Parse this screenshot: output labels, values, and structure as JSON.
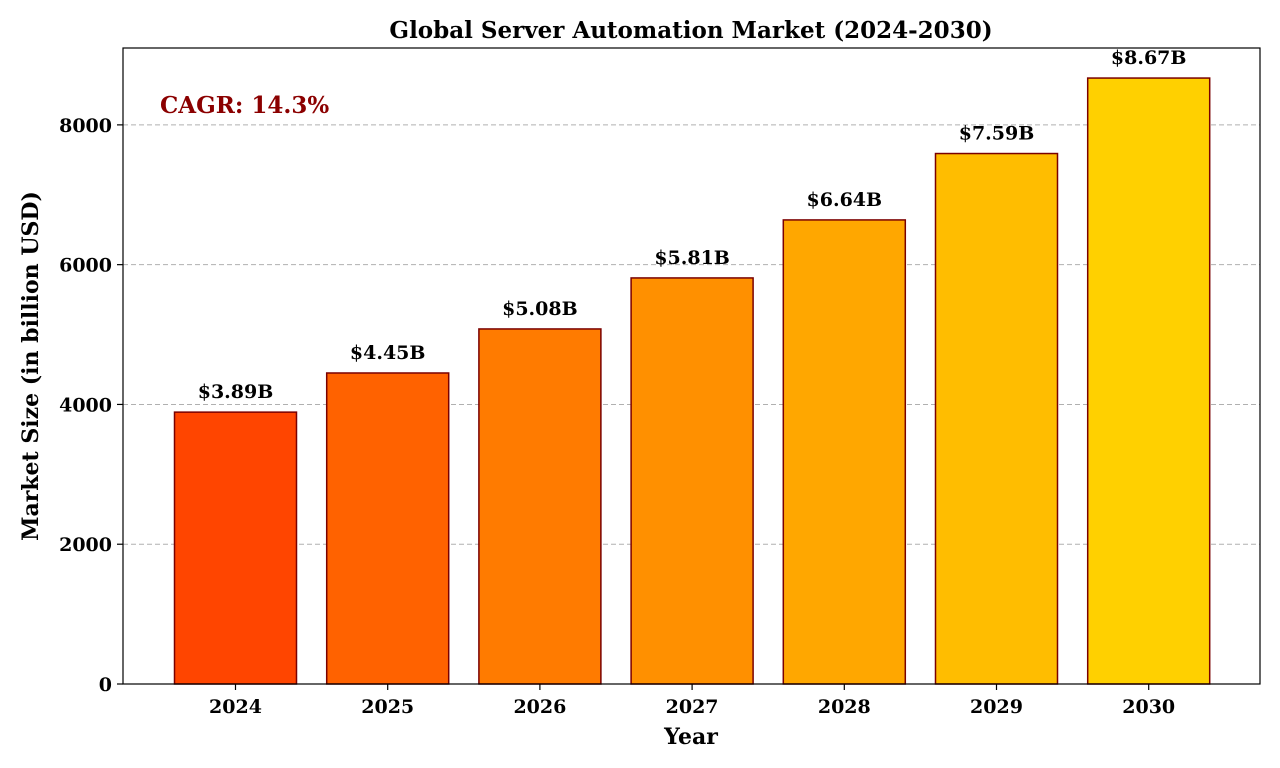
{
  "chart_data": {
    "type": "bar",
    "title": "Global Server Automation Market (2024-2030)",
    "xlabel": "Year",
    "ylabel": "Market Size (in billion USD)",
    "categories": [
      "2024",
      "2025",
      "2026",
      "2027",
      "2028",
      "2029",
      "2030"
    ],
    "values": [
      3890,
      4450,
      5080,
      5810,
      6640,
      7590,
      8670
    ],
    "data_labels": [
      "$3.89B",
      "$4.45B",
      "$5.08B",
      "$5.81B",
      "$6.64B",
      "$7.59B",
      "$8.67B"
    ],
    "bar_colors": [
      "#ff4500",
      "#ff6200",
      "#ff7b00",
      "#ff9000",
      "#ffa700",
      "#ffbd00",
      "#ffd000"
    ],
    "bar_edge_color": "#7a0000",
    "ylim": [
      0,
      9100
    ],
    "yticks": [
      0,
      2000,
      4000,
      6000,
      8000
    ],
    "grid": "y-dashed",
    "annotation": {
      "text": "CAGR: 14.3%",
      "color": "#8b0000",
      "placement": "top-left"
    }
  }
}
